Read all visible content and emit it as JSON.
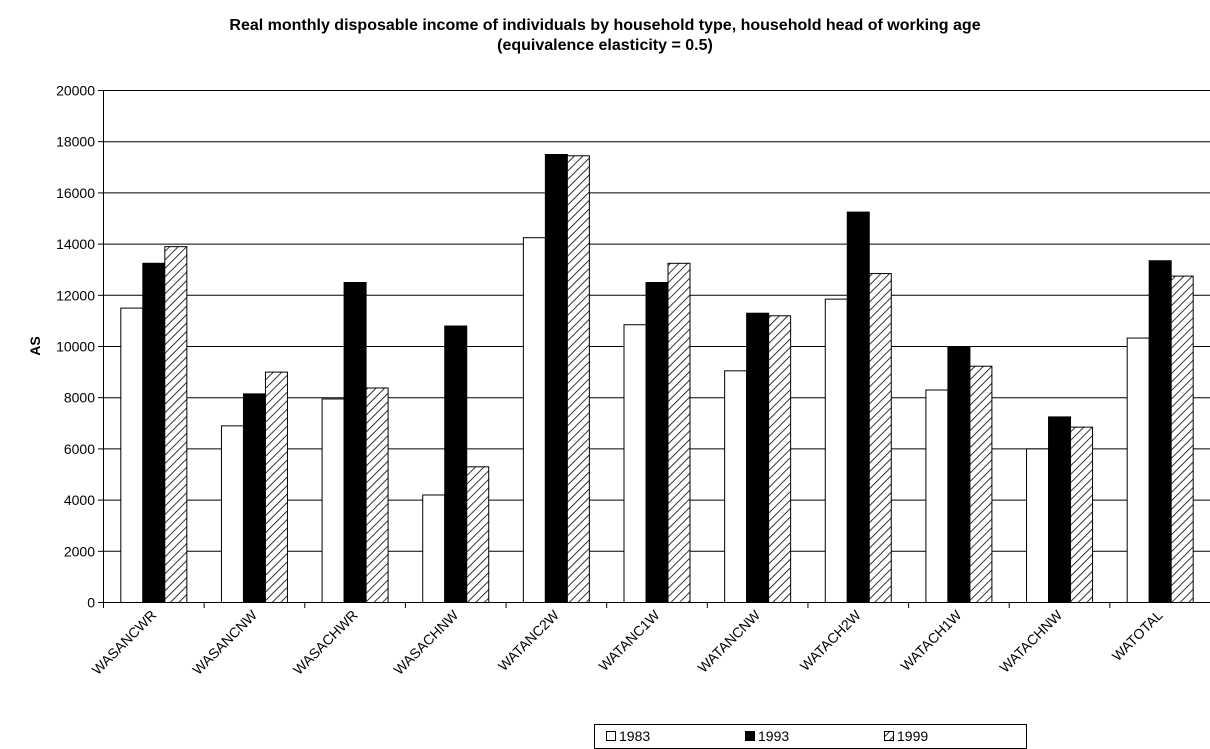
{
  "chart_data": {
    "type": "bar",
    "title_lines": [
      "Real monthly disposable income of individuals by household type, household head of working age",
      "(equivalence elasticity = 0.5)"
    ],
    "xlabel": "",
    "ylabel": "AS",
    "ylim": [
      0,
      20000
    ],
    "yticks": [
      0,
      2000,
      4000,
      6000,
      8000,
      10000,
      12000,
      14000,
      16000,
      18000,
      20000
    ],
    "grid": true,
    "legend_position": "bottom-right",
    "categories": [
      "WASANCWR",
      "WASANCNW",
      "WASACHWR",
      "WASACHNW",
      "WATANC2W",
      "WATANC1W",
      "WATANCNW",
      "WATACH2W",
      "WATACH1W",
      "WATACHNW",
      "WATOTAL"
    ],
    "series": [
      {
        "name": "1983",
        "fill": "white",
        "values": [
          11500,
          6900,
          7950,
          4200,
          14250,
          10850,
          9050,
          11850,
          8300,
          6000,
          10330
        ]
      },
      {
        "name": "1993",
        "fill": "black",
        "values": [
          13250,
          8150,
          12500,
          10800,
          17500,
          12500,
          11300,
          15250,
          10000,
          7250,
          13350
        ]
      },
      {
        "name": "1999",
        "fill": "hatched",
        "values": [
          13900,
          9000,
          8380,
          5300,
          17450,
          13250,
          11200,
          12850,
          9230,
          6850,
          12750
        ]
      }
    ],
    "colors": {
      "bar_stroke": "#000000",
      "solid": "#000000",
      "background": "#ffffff",
      "gridline": "#000000"
    }
  }
}
